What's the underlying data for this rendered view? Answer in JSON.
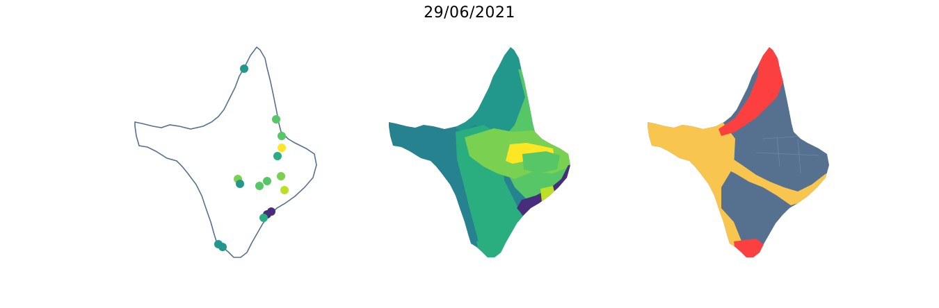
{
  "title": "29/06/2021",
  "colors": {
    "outline": "#55708f",
    "viridis_dark_purple": "#472d7b",
    "viridis_teal_dark": "#26828e",
    "viridis_teal": "#21988b",
    "viridis_green": "#2aae80",
    "viridis_light_green": "#56c667",
    "viridis_lime": "#7ad151",
    "viridis_yellow_green": "#bddf26",
    "viridis_yellow": "#fde725",
    "category_red": "#fc4040",
    "category_gold": "#f8c64f",
    "category_slate": "#55718f"
  },
  "panels": [
    {
      "name": "station-points",
      "kind": "scatter-on-outline"
    },
    {
      "name": "viridis-choropleth",
      "kind": "choropleth"
    },
    {
      "name": "category-choropleth",
      "kind": "choropleth"
    }
  ],
  "stations": [
    {
      "id": "s01",
      "color": "#21988b"
    },
    {
      "id": "s02",
      "color": "#56c667"
    },
    {
      "id": "s03",
      "color": "#56c667"
    },
    {
      "id": "s04",
      "color": "#fde725"
    },
    {
      "id": "s05",
      "color": "#2aae80"
    },
    {
      "id": "s06",
      "color": "#7ad151"
    },
    {
      "id": "s07",
      "color": "#21988b"
    },
    {
      "id": "s08",
      "color": "#56c667"
    },
    {
      "id": "s09",
      "color": "#56c667"
    },
    {
      "id": "s10",
      "color": "#7ad151"
    },
    {
      "id": "s11",
      "color": "#bddf26"
    },
    {
      "id": "s12",
      "color": "#472d7b"
    },
    {
      "id": "s13",
      "color": "#472d7b"
    },
    {
      "id": "s14",
      "color": "#2aae80"
    },
    {
      "id": "s15",
      "color": "#21988b"
    },
    {
      "id": "s16",
      "color": "#21988b"
    }
  ]
}
